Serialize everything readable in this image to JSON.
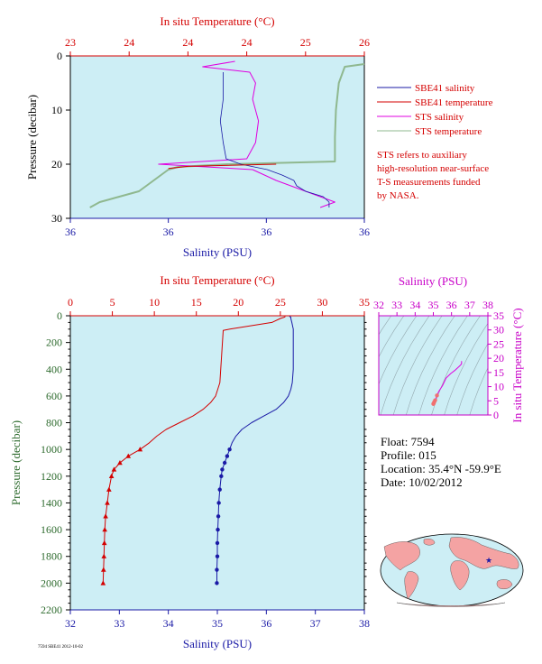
{
  "colors": {
    "plot_bg": "#cdeef5",
    "salinity": "#1a1aa6",
    "temperature": "#d40000",
    "sts_salinity": "#e000e0",
    "sts_temperature": "#8fb88f",
    "ts_axis": "#c800c8",
    "pressure_axis": "#2e6b2e"
  },
  "top_panel": {
    "top_axis_title": "In situ Temperature (°C)",
    "top_ticks": [
      "23",
      "24",
      "24",
      "24",
      "25",
      "26"
    ],
    "left_axis_title": "Pressure (decibar)",
    "left_ticks": [
      "0",
      "10",
      "20",
      "30"
    ],
    "bottom_axis_title": "Salinity (PSU)",
    "bottom_ticks": [
      "36",
      "36",
      "36",
      "36"
    ],
    "legend": [
      {
        "label": "SBE41 salinity",
        "color": "#1a1aa6"
      },
      {
        "label": "SBE41 temperature",
        "color": "#d40000"
      },
      {
        "label": "STS salinity",
        "color": "#e000e0"
      },
      {
        "label": "STS temperature",
        "color": "#8fb88f"
      }
    ],
    "note_lines": [
      "STS refers to auxiliary",
      "high-resolution near-surface",
      "T-S measurements funded",
      "by NASA."
    ]
  },
  "main_panel": {
    "top_axis_title": "In situ Temperature (°C)",
    "top_ticks": [
      "0",
      "5",
      "10",
      "15",
      "20",
      "25",
      "30",
      "35"
    ],
    "left_axis_title": "Pressure (decibar)",
    "left_ticks": [
      "0",
      "200",
      "400",
      "600",
      "800",
      "1000",
      "1200",
      "1400",
      "1600",
      "1800",
      "2000",
      "2200"
    ],
    "bottom_axis_title": "Salinity (PSU)",
    "bottom_ticks": [
      "32",
      "33",
      "34",
      "35",
      "36",
      "37",
      "38"
    ]
  },
  "ts_panel": {
    "top_axis_title": "Salinity (PSU)",
    "top_ticks": [
      "32",
      "33",
      "34",
      "35",
      "36",
      "37",
      "38"
    ],
    "right_axis_title": "In situ Temperature (°C)",
    "right_ticks": [
      "35",
      "30",
      "25",
      "20",
      "15",
      "10",
      "5",
      "0"
    ]
  },
  "float_info": {
    "float": "Float:  7594",
    "profile": "Profile:  015",
    "location": "Location:  35.4°N  -59.9°E",
    "date": "Date:  10/02/2012"
  },
  "footer_tag": "7594 SBE41 2012-10-02",
  "chart_data": [
    {
      "type": "line",
      "title": "",
      "xlabel": "Salinity (PSU)",
      "x2label": "In situ Temperature (°C)",
      "ylabel": "Pressure (decibar)",
      "ylim": [
        30,
        0
      ],
      "xlim_temperature": [
        23,
        26
      ],
      "series": [
        {
          "name": "SBE41 salinity",
          "pressure": [
            3,
            8,
            12,
            16,
            19,
            20,
            21,
            22,
            23,
            24,
            25,
            26,
            27,
            28
          ],
          "norm_x": [
            0.52,
            0.52,
            0.51,
            0.52,
            0.53,
            0.58,
            0.67,
            0.72,
            0.76,
            0.77,
            0.8,
            0.86,
            0.88,
            0.88
          ]
        },
        {
          "name": "SBE41 temperature",
          "pressure": [
            20,
            20.4,
            20.8
          ],
          "temperature": [
            25.1,
            24.2,
            24.0
          ]
        },
        {
          "name": "STS salinity",
          "pressure": [
            1,
            2,
            3,
            5,
            8,
            12,
            16,
            19,
            20,
            21,
            22,
            23,
            24,
            25,
            26,
            27,
            28
          ],
          "norm_x": [
            0.56,
            0.45,
            0.61,
            0.63,
            0.62,
            0.64,
            0.63,
            0.6,
            0.3,
            0.62,
            0.66,
            0.7,
            0.75,
            0.8,
            0.85,
            0.9,
            0.85
          ]
        },
        {
          "name": "STS temperature",
          "pressure": [
            1.5,
            2,
            5,
            10,
            15,
            18,
            19.5,
            20,
            20.5,
            21,
            23,
            25,
            26,
            27,
            28
          ],
          "temperature": [
            26.0,
            25.8,
            25.74,
            25.71,
            25.7,
            25.7,
            25.7,
            24.6,
            24.1,
            24.0,
            23.85,
            23.7,
            23.5,
            23.3,
            23.2
          ]
        }
      ]
    },
    {
      "type": "line",
      "title": "",
      "xlabel": "Salinity (PSU)",
      "x2label": "In situ Temperature (°C)",
      "ylabel": "Pressure (decibar)",
      "xlim_salinity": [
        32,
        38
      ],
      "xlim_temperature": [
        0,
        35
      ],
      "ylim": [
        2200,
        0
      ],
      "series": [
        {
          "name": "Salinity",
          "pressure": [
            5,
            10,
            20,
            50,
            100,
            200,
            400,
            500,
            550,
            600,
            650,
            700,
            750,
            800,
            850,
            900,
            950,
            1000,
            1050,
            1100,
            1150,
            1200,
            1300,
            1400,
            1500,
            1600,
            1700,
            1800,
            1900,
            2000
          ],
          "values": [
            36.47,
            36.5,
            36.5,
            36.52,
            36.55,
            36.55,
            36.55,
            36.53,
            36.5,
            36.45,
            36.35,
            36.2,
            35.95,
            35.7,
            35.5,
            35.38,
            35.3,
            35.25,
            35.2,
            35.15,
            35.1,
            35.08,
            35.05,
            35.03,
            35.02,
            35.01,
            35.0,
            35.0,
            34.99,
            34.99
          ]
        },
        {
          "name": "Temperature",
          "pressure": [
            5,
            10,
            20,
            50,
            100,
            110,
            300,
            500,
            600,
            650,
            700,
            750,
            800,
            850,
            900,
            950,
            1000,
            1050,
            1100,
            1150,
            1200,
            1300,
            1400,
            1500,
            1600,
            1700,
            1800,
            1900,
            2000
          ],
          "values": [
            25.6,
            25.5,
            25.0,
            24.0,
            19.0,
            18.2,
            18.0,
            17.8,
            17.3,
            16.7,
            15.8,
            14.6,
            13.0,
            11.4,
            10.3,
            9.4,
            8.3,
            6.9,
            5.9,
            5.2,
            4.9,
            4.6,
            4.4,
            4.2,
            4.1,
            4.05,
            4.0,
            3.95,
            3.9
          ]
        }
      ]
    },
    {
      "type": "scatter",
      "title": "",
      "xlabel": "Salinity (PSU)",
      "ylabel": "In situ Temperature (°C)",
      "xlim": [
        32,
        38
      ],
      "ylim": [
        0,
        35
      ],
      "series": [
        {
          "name": "T-S",
          "salinity": [
            35.0,
            35.02,
            35.05,
            35.1,
            35.2,
            35.3,
            35.5,
            35.7,
            35.95,
            36.2,
            36.35,
            36.45,
            36.55,
            36.55
          ],
          "temperature": [
            3.9,
            4.1,
            4.6,
            5.2,
            6.9,
            8.3,
            10.3,
            13.0,
            14.6,
            15.8,
            16.7,
            17.3,
            18.0,
            19.0
          ]
        }
      ]
    }
  ]
}
